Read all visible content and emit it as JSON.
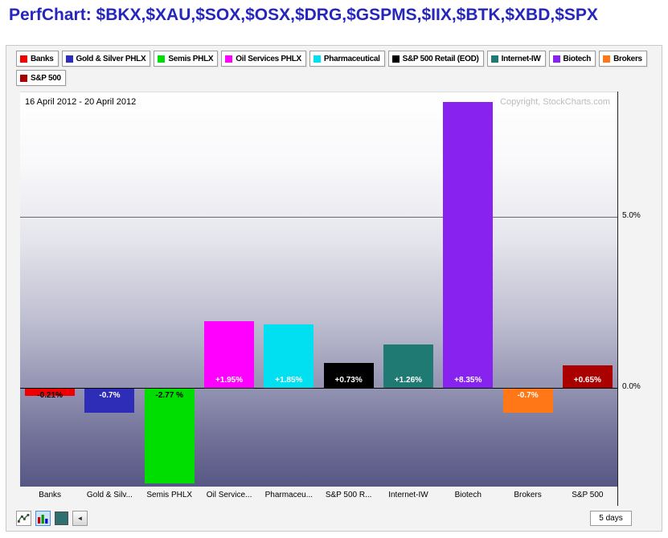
{
  "page": {
    "title": "PerfChart: $BKX,$XAU,$SOX,$OSX,$DRG,$GSPMS,$IIX,$BTK,$XBD,$SPX"
  },
  "legend": {
    "items": [
      {
        "label": "Banks",
        "color": "#ee0000"
      },
      {
        "label": "Gold & Silver PHLX",
        "color": "#2d2db8"
      },
      {
        "label": "Semis PHLX",
        "color": "#00dd00"
      },
      {
        "label": "Oil Services PHLX",
        "color": "#ff00ff"
      },
      {
        "label": "Pharmaceutical",
        "color": "#00e0f0"
      },
      {
        "label": "S&P 500 Retail (EOD)",
        "color": "#000000"
      },
      {
        "label": "Internet-IW",
        "color": "#1f7a73"
      },
      {
        "label": "Biotech",
        "color": "#8822ee"
      },
      {
        "label": "Brokers",
        "color": "#ff7716"
      },
      {
        "label": "S&P 500",
        "color": "#aa0000"
      }
    ]
  },
  "chart": {
    "date_range": "16 April 2012 - 20 April 2012",
    "copyright": "Copyright, StockCharts.com"
  },
  "chart_data": {
    "type": "bar",
    "title": "PerfChart: $BKX,$XAU,$SOX,$OSX,$DRG,$GSPMS,$IIX,$BTK,$XBD,$SPX",
    "period": "16 April 2012 - 20 April 2012",
    "categories": [
      "Banks",
      "Gold & Silver PHLX",
      "Semis PHLX",
      "Oil Services PHLX",
      "Pharmaceutical",
      "S&P 500 Retail (EOD)",
      "Internet-IW",
      "Biotech",
      "Brokers",
      "S&P 500"
    ],
    "x_tick_labels": [
      "Banks",
      "Gold & Silv...",
      "Semis PHLX",
      "Oil Service...",
      "Pharmaceu...",
      "S&P 500 R...",
      "Internet-IW",
      "Biotech",
      "Brokers",
      "S&P 500"
    ],
    "values": [
      -0.21,
      -0.7,
      -2.77,
      1.95,
      1.85,
      0.73,
      1.26,
      8.35,
      -0.7,
      0.65
    ],
    "bar_labels": [
      "-0.21%",
      "-0.7%",
      "-2.77 %",
      "+1.95%",
      "+1.85%",
      "+0.73%",
      "+1.26%",
      "+8.35%",
      "-0.7%",
      "+0.65%"
    ],
    "bar_colors": [
      "#ee0000",
      "#2d2db8",
      "#00dd00",
      "#ff00ff",
      "#00e0f0",
      "#000000",
      "#1f7a73",
      "#8822ee",
      "#ff7716",
      "#aa0000"
    ],
    "label_colors": [
      "#000000",
      "#ffffff",
      "#000000",
      "#ffffff",
      "#ffffff",
      "#ffffff",
      "#ffffff",
      "#ffffff",
      "#ffffff",
      "#ffffff"
    ],
    "xlabel": "",
    "ylabel": "",
    "ylim": [
      -2.9,
      8.62
    ],
    "gridlines": [
      {
        "value": 5.0,
        "label": "5.0%"
      },
      {
        "value": 0.0,
        "label": "0.0%"
      }
    ],
    "grid": "horizontal-only",
    "legend_position": "top"
  },
  "toolbar": {
    "line_mode_icon": "line-chart-icon",
    "histogram_mode_icon": "histogram-icon",
    "color_swatch": "#2e6f6f",
    "left_arrow": "◄",
    "period_label": "5 days"
  }
}
